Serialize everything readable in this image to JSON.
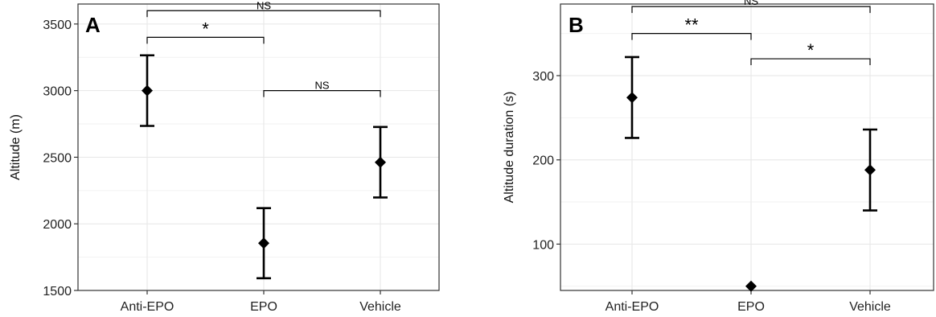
{
  "chart_data": [
    {
      "type": "scatter",
      "panel_letter": "A",
      "title": "",
      "xlabel": "",
      "ylabel": "Altitude (m)",
      "categories": [
        "Anti-EPO",
        "EPO",
        "Vehicle"
      ],
      "ylim": [
        1500,
        3650
      ],
      "yticks": [
        1500,
        2000,
        2500,
        3000,
        3500
      ],
      "ytick_labels": [
        "1500",
        "2000",
        "2500",
        "3000",
        "3500"
      ],
      "grid": true,
      "series": [
        {
          "mean": [
            3000,
            1855,
            2462
          ],
          "lower": [
            2735,
            1592,
            2198
          ],
          "upper": [
            3265,
            2118,
            2727
          ]
        }
      ],
      "comparisons": [
        {
          "from": "Anti-EPO",
          "to": "Vehicle",
          "y": 3600,
          "label": "NS"
        },
        {
          "from": "Anti-EPO",
          "to": "EPO",
          "y": 3400,
          "label": "*"
        },
        {
          "from": "EPO",
          "to": "Vehicle",
          "y": 3000,
          "label": "NS"
        }
      ]
    },
    {
      "type": "scatter",
      "panel_letter": "B",
      "title": "",
      "xlabel": "",
      "ylabel": "Altitude duration (s)",
      "categories": [
        "Anti-EPO",
        "EPO",
        "Vehicle"
      ],
      "ylim": [
        45,
        385
      ],
      "yticks": [
        100,
        200,
        300
      ],
      "ytick_labels": [
        "100",
        "200",
        "300"
      ],
      "grid": true,
      "series": [
        {
          "mean": [
            274,
            50,
            188
          ],
          "lower": [
            226,
            50,
            140
          ],
          "upper": [
            322,
            50,
            236
          ]
        }
      ],
      "comparisons": [
        {
          "from": "Anti-EPO",
          "to": "Vehicle",
          "y": 382,
          "label": "NS"
        },
        {
          "from": "Anti-EPO",
          "to": "EPO",
          "y": 350,
          "label": "**"
        },
        {
          "from": "EPO",
          "to": "Vehicle",
          "y": 320,
          "label": "*"
        }
      ]
    }
  ]
}
